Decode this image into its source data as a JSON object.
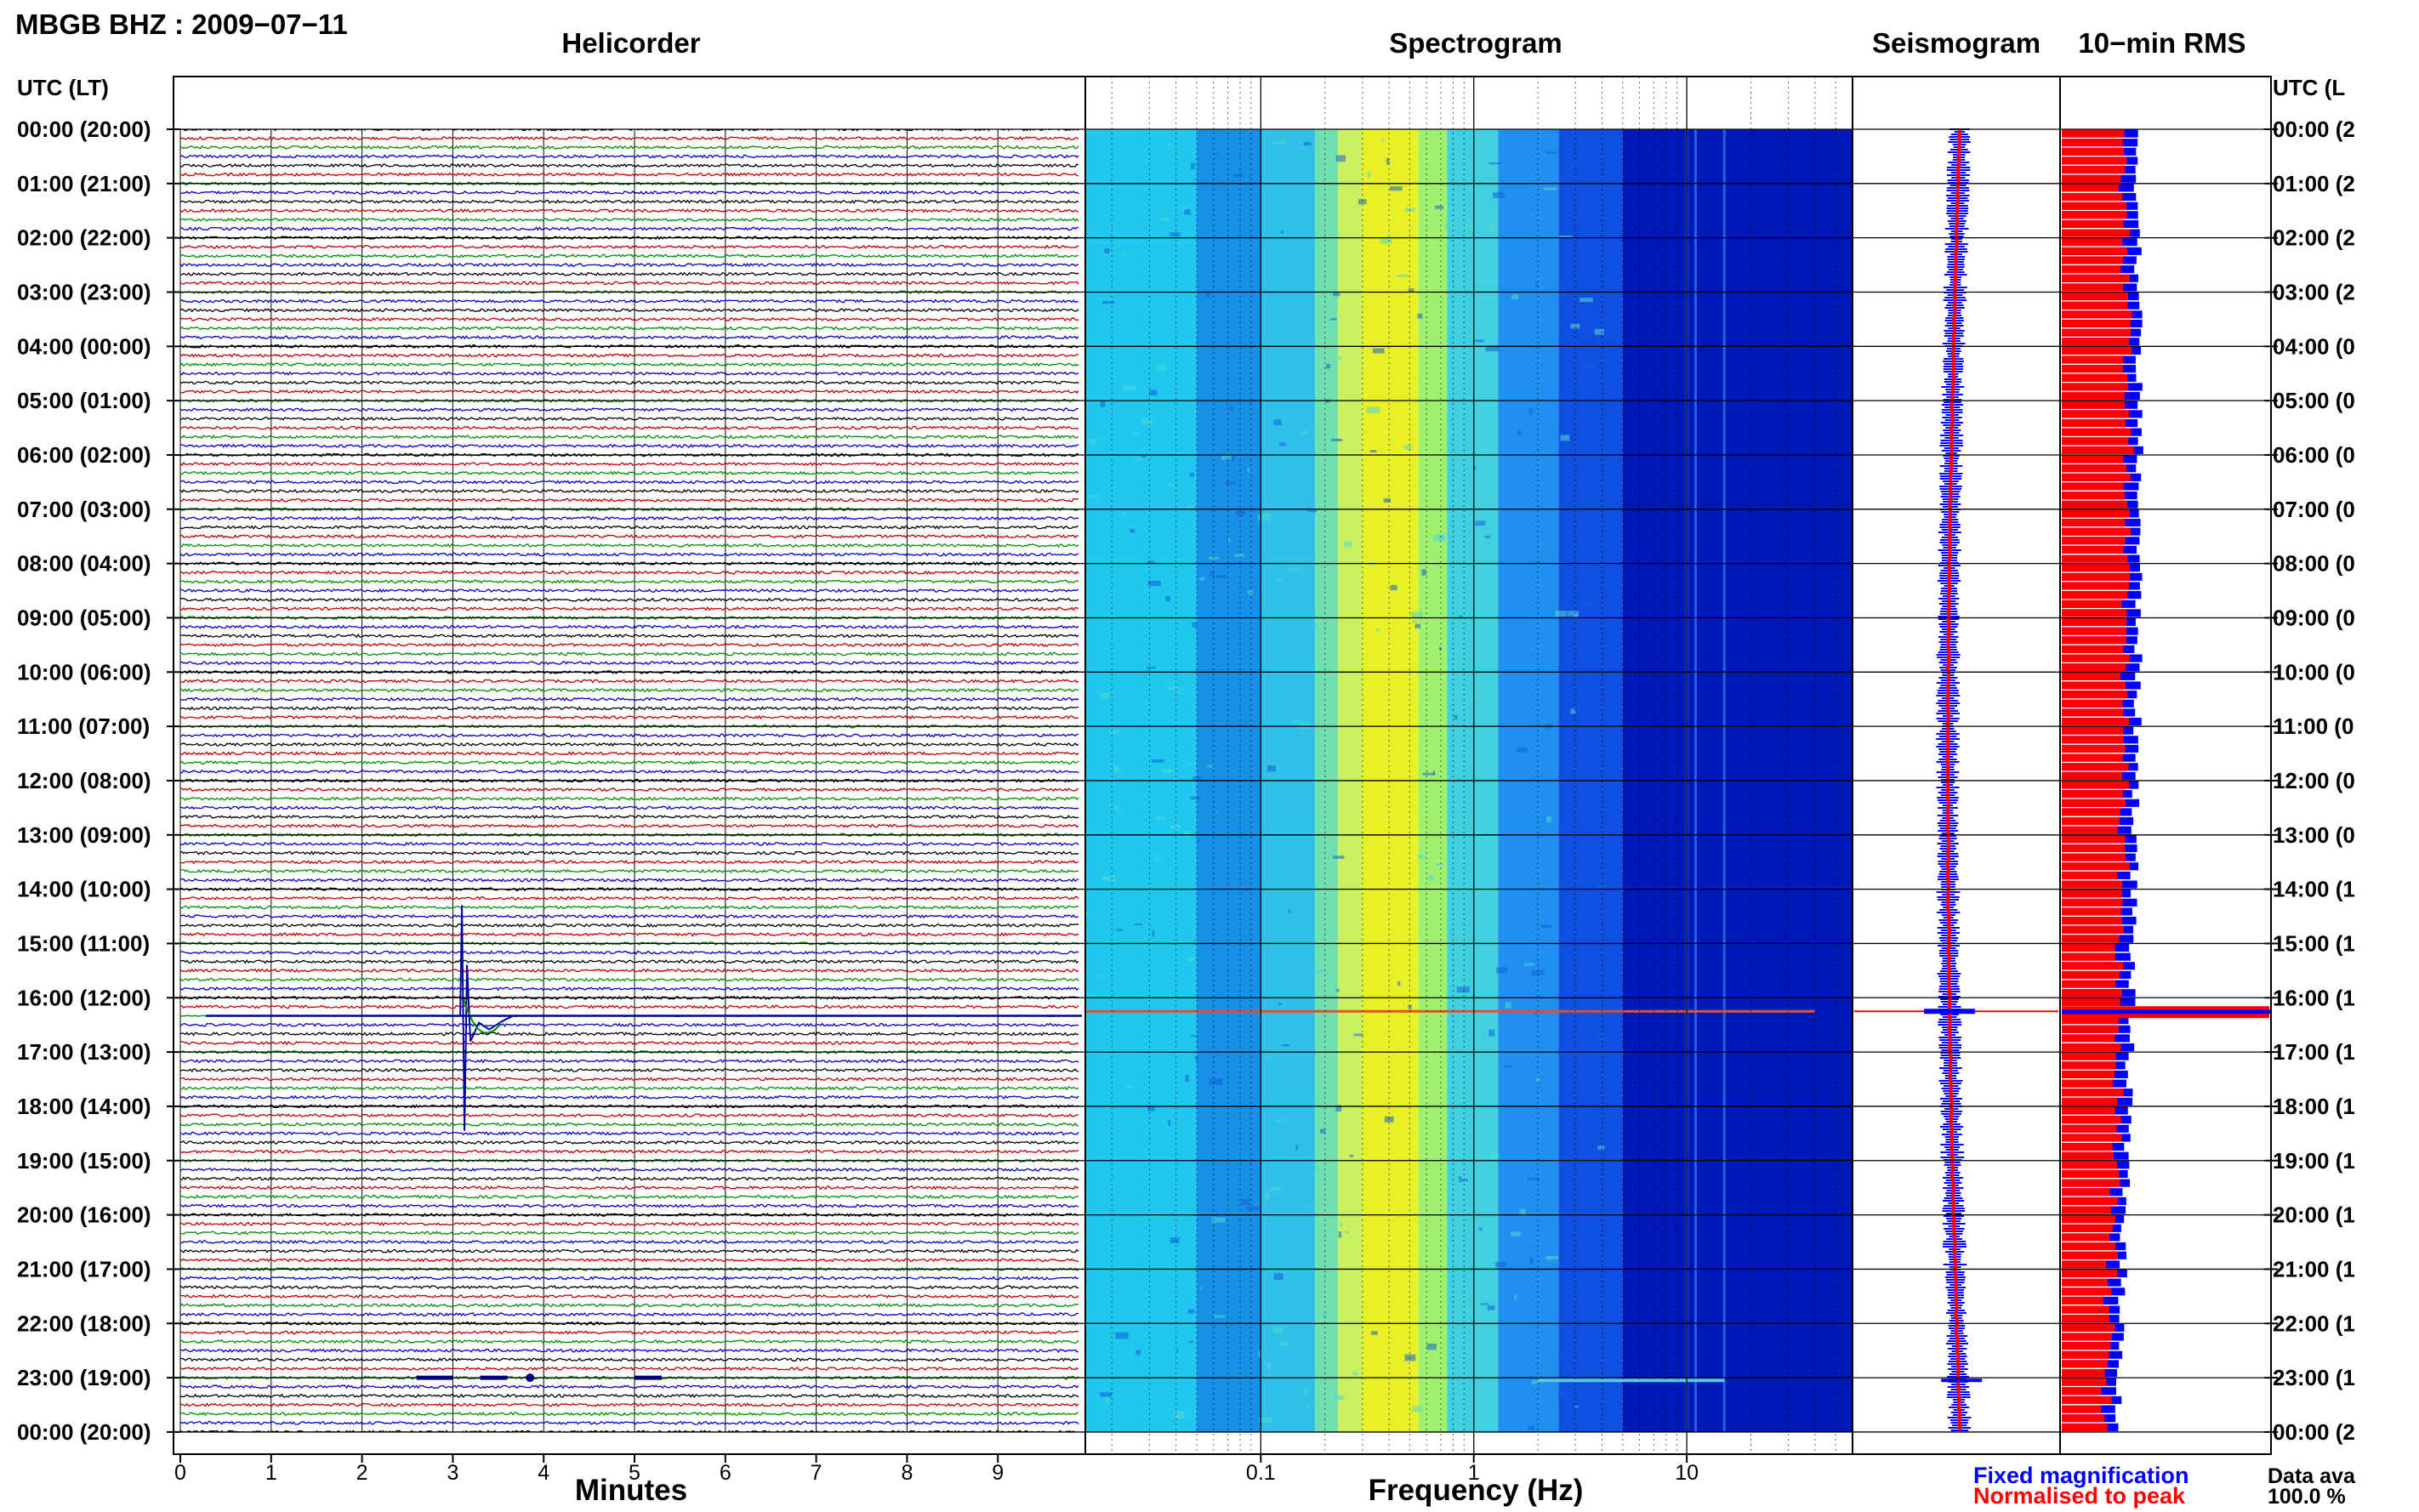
{
  "header": {
    "station_title": "MBGB BHZ : 2009−07−11"
  },
  "panels": {
    "helicorder": "Helicorder",
    "spectrogram": "Spectrogram",
    "seismogram": "Seismogram",
    "rms": "10−min RMS"
  },
  "axes": {
    "left_label": "UTC (LT)",
    "right_label": "UTC (L",
    "helicorder_xlabel": "Minutes",
    "spectrogram_xlabel": "Frequency (Hz)"
  },
  "time_labels": [
    "00:00 (20:00)",
    "01:00 (21:00)",
    "02:00 (22:00)",
    "03:00 (23:00)",
    "04:00 (00:00)",
    "05:00 (01:00)",
    "06:00 (02:00)",
    "07:00 (03:00)",
    "08:00 (04:00)",
    "09:00 (05:00)",
    "10:00 (06:00)",
    "11:00 (07:00)",
    "12:00 (08:00)",
    "13:00 (09:00)",
    "14:00 (10:00)",
    "15:00 (11:00)",
    "16:00 (12:00)",
    "17:00 (13:00)",
    "18:00 (14:00)",
    "19:00 (15:00)",
    "20:00 (16:00)",
    "21:00 (17:00)",
    "22:00 (18:00)",
    "23:00 (19:00)",
    "00:00 (20:00)"
  ],
  "right_time_labels": [
    "00:00 (2",
    "01:00 (2",
    "02:00 (2",
    "03:00 (2",
    "04:00 (0",
    "05:00 (0",
    "06:00 (0",
    "07:00 (0",
    "08:00 (0",
    "09:00 (0",
    "10:00 (0",
    "11:00 (0",
    "12:00 (0",
    "13:00 (0",
    "14:00 (1",
    "15:00 (1",
    "16:00 (1",
    "17:00 (1",
    "18:00 (1",
    "19:00 (1",
    "20:00 (1",
    "21:00 (1",
    "22:00 (1",
    "23:00 (1",
    "00:00 (2"
  ],
  "helicorder_ticks": [
    "0",
    "1",
    "2",
    "3",
    "4",
    "5",
    "6",
    "7",
    "8",
    "9"
  ],
  "spectrogram_ticks": [
    "0.1",
    "1",
    "10"
  ],
  "legend": {
    "fixed": "Fixed magnification",
    "normalised": "Normalised to peak"
  },
  "data_availability": {
    "label": "Data ava",
    "value": "100.0 %"
  },
  "colors": {
    "trace_cycle": [
      "#000000",
      "#c00000",
      "#009000",
      "#0000c8"
    ],
    "event_trace": "#0000a0",
    "fixed": "#0000ff",
    "normalised": "#ff0000",
    "gridline": "#000000"
  },
  "chart_data": [
    {
      "type": "line",
      "name": "helicorder",
      "xlabel": "Minutes",
      "xlim": [
        0,
        10
      ],
      "rows_per_hour": 6,
      "hours": 24,
      "events": [
        {
          "hour_row": 16,
          "sub_row": 2,
          "minute": 3.1,
          "note": "large transient"
        },
        {
          "hour_row": 23,
          "sub_row": 0,
          "minute": 3.3,
          "note": "burst"
        }
      ]
    },
    {
      "type": "heatmap",
      "name": "spectrogram",
      "xlabel": "Frequency (Hz)",
      "xscale": "log",
      "xlim": [
        0.015,
        60
      ],
      "colormap": "jet",
      "peak_band_hz": [
        0.2,
        0.5
      ],
      "persistent_lines_hz": [
        10,
        11,
        15
      ]
    },
    {
      "type": "line",
      "name": "seismogram",
      "series": [
        "Fixed magnification",
        "Normalised to peak"
      ]
    },
    {
      "type": "bar",
      "name": "10-min RMS",
      "orientation": "horizontal",
      "series": [
        {
          "name": "Fixed magnification",
          "color": "#0000ff"
        },
        {
          "name": "Normalised to peak",
          "color": "#ff0000"
        }
      ],
      "spike_hour": 16.25
    }
  ]
}
